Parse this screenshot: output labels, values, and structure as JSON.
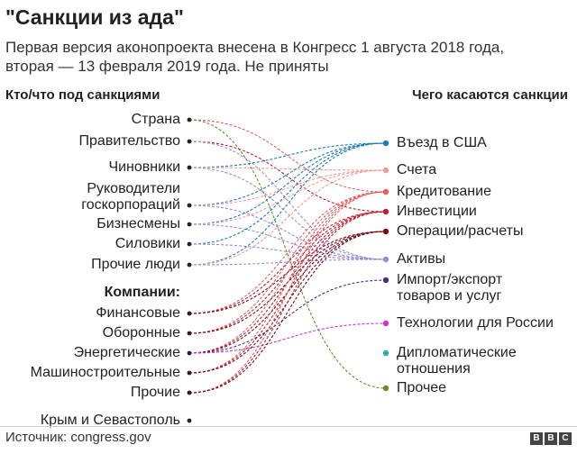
{
  "title": "\"Санкции из ада\"",
  "subtitle": "Первая версия аконопроекта внесена в Конгресс 1 августа 2018 года, вторая — 13 февраля 2019 года. Не приняты",
  "left_header": "Кто/что под санкциями",
  "right_header": "Чего касаются санкции",
  "source": "Источник: congress.gov",
  "logo": [
    "B",
    "B",
    "C"
  ],
  "chart_data": {
    "type": "bipartite-flow",
    "title": "\"Санкции из ада\"",
    "left_nodes": [
      {
        "id": "strana",
        "label": "Страна"
      },
      {
        "id": "pravitelstvo",
        "label": "Правительство"
      },
      {
        "id": "chinovniki",
        "label": "Чиновники"
      },
      {
        "id": "rukovoditeli",
        "label": "Руководители\nгоскорпораций"
      },
      {
        "id": "biznesmeny",
        "label": "Бизнесмены"
      },
      {
        "id": "siloviki",
        "label": "Силовики"
      },
      {
        "id": "prochie_ludi",
        "label": "Прочие люди"
      },
      {
        "id": "kompanii_header",
        "label": "Компании:",
        "is_header": true
      },
      {
        "id": "finansovye",
        "label": "Финансовые"
      },
      {
        "id": "oboronnye",
        "label": "Оборонные"
      },
      {
        "id": "energeticheskie",
        "label": "Энергетические"
      },
      {
        "id": "mashino",
        "label": "Машиностроительные"
      },
      {
        "id": "prochie",
        "label": "Прочие"
      },
      {
        "id": "krym",
        "label": "Крым и Севастополь"
      }
    ],
    "right_nodes": [
      {
        "id": "vezd",
        "label": "Въезд в США",
        "color": "#1b7eb0"
      },
      {
        "id": "scheta",
        "label": "Счета",
        "color": "#f39a9a"
      },
      {
        "id": "kredit",
        "label": "Кредитование",
        "color": "#e06060"
      },
      {
        "id": "invest",
        "label": "Инвестиции",
        "color": "#c01f2c"
      },
      {
        "id": "operacii",
        "label": "Операции/расчеты",
        "color": "#7a0b17"
      },
      {
        "id": "aktivy",
        "label": "Активы",
        "color": "#9b8bd6"
      },
      {
        "id": "import",
        "label": "Импорт/экспорт\nтоваров и услуг",
        "color": "#4b2d85"
      },
      {
        "id": "tech",
        "label": "Технологии для России",
        "color": "#cc33cc"
      },
      {
        "id": "diplo",
        "label": "Дипломатические\nотношения",
        "color": "#1fb5a0"
      },
      {
        "id": "prochee",
        "label": "Прочее",
        "color": "#6b8e23"
      }
    ],
    "links": [
      {
        "from": "strana",
        "to": "kredit"
      },
      {
        "from": "strana",
        "to": "prochee"
      },
      {
        "from": "pravitelstvo",
        "to": "invest"
      },
      {
        "from": "pravitelstvo",
        "to": "aktivy"
      },
      {
        "from": "chinovniki",
        "to": "vezd"
      },
      {
        "from": "chinovniki",
        "to": "scheta"
      },
      {
        "from": "chinovniki",
        "to": "aktivy"
      },
      {
        "from": "rukovoditeli",
        "to": "vezd"
      },
      {
        "from": "rukovoditeli",
        "to": "scheta"
      },
      {
        "from": "rukovoditeli",
        "to": "aktivy"
      },
      {
        "from": "biznesmeny",
        "to": "vezd"
      },
      {
        "from": "biznesmeny",
        "to": "scheta"
      },
      {
        "from": "biznesmeny",
        "to": "aktivy"
      },
      {
        "from": "siloviki",
        "to": "vezd"
      },
      {
        "from": "siloviki",
        "to": "aktivy"
      },
      {
        "from": "prochie_ludi",
        "to": "vezd"
      },
      {
        "from": "prochie_ludi",
        "to": "scheta"
      },
      {
        "from": "prochie_ludi",
        "to": "aktivy"
      },
      {
        "from": "finansovye",
        "to": "kredit"
      },
      {
        "from": "finansovye",
        "to": "invest"
      },
      {
        "from": "finansovye",
        "to": "operacii"
      },
      {
        "from": "oboronnye",
        "to": "kredit"
      },
      {
        "from": "oboronnye",
        "to": "invest"
      },
      {
        "from": "oboronnye",
        "to": "operacii"
      },
      {
        "from": "energeticheskie",
        "to": "kredit"
      },
      {
        "from": "energeticheskie",
        "to": "invest"
      },
      {
        "from": "energeticheskie",
        "to": "operacii"
      },
      {
        "from": "energeticheskie",
        "to": "import"
      },
      {
        "from": "energeticheskie",
        "to": "tech"
      },
      {
        "from": "mashino",
        "to": "kredit"
      },
      {
        "from": "mashino",
        "to": "invest"
      },
      {
        "from": "mashino",
        "to": "operacii"
      },
      {
        "from": "prochie",
        "to": "kredit"
      },
      {
        "from": "prochie",
        "to": "invest"
      },
      {
        "from": "prochie",
        "to": "operacii"
      }
    ]
  }
}
